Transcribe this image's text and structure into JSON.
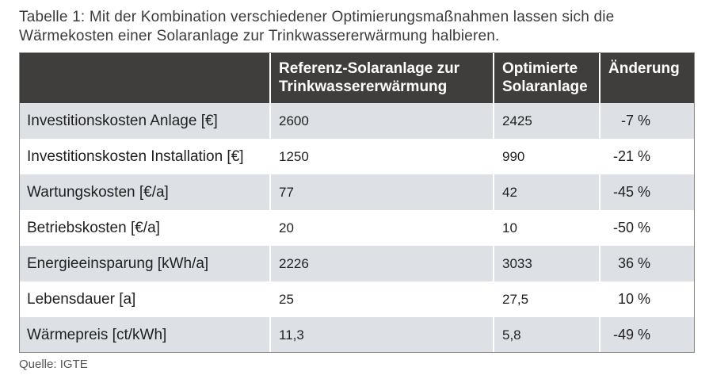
{
  "caption": "Tabelle 1: Mit der Kombination verschiedener Optimierungsmaßnahmen lassen sich die Wärmekosten einer Solaranlage zur Trinkwassererwärmung halbieren.",
  "table": {
    "headers": [
      "",
      "Referenz-Solaranlage zur Trinkwassererwärmung",
      "Optimierte Solaranlage",
      "Änderung"
    ],
    "rows": [
      {
        "label": "Investitionskosten Anlage [€]",
        "reference": "2600",
        "optimized": "2425",
        "change": "-7 %"
      },
      {
        "label": "Investitionskosten Installation [€]",
        "reference": "1250",
        "optimized": "990",
        "change": "-21 %"
      },
      {
        "label": "Wartungskosten [€/a]",
        "reference": "77",
        "optimized": "42",
        "change": "-45 %"
      },
      {
        "label": "Betriebskosten [€/a]",
        "reference": "20",
        "optimized": "10",
        "change": "-50 %"
      },
      {
        "label": "Energieeinsparung [kWh/a]",
        "reference": "2226",
        "optimized": "3033",
        "change": "36 %"
      },
      {
        "label": "Lebensdauer [a]",
        "reference": "25",
        "optimized": "27,5",
        "change": "10 %"
      },
      {
        "label": "Wärmepreis [ct/kWh]",
        "reference": "11,3",
        "optimized": "5,8",
        "change": "-49 %"
      }
    ]
  },
  "source": "Quelle: IGTE",
  "colors": {
    "header_background": "#403e3d",
    "row_shade": "#dde1e6"
  }
}
